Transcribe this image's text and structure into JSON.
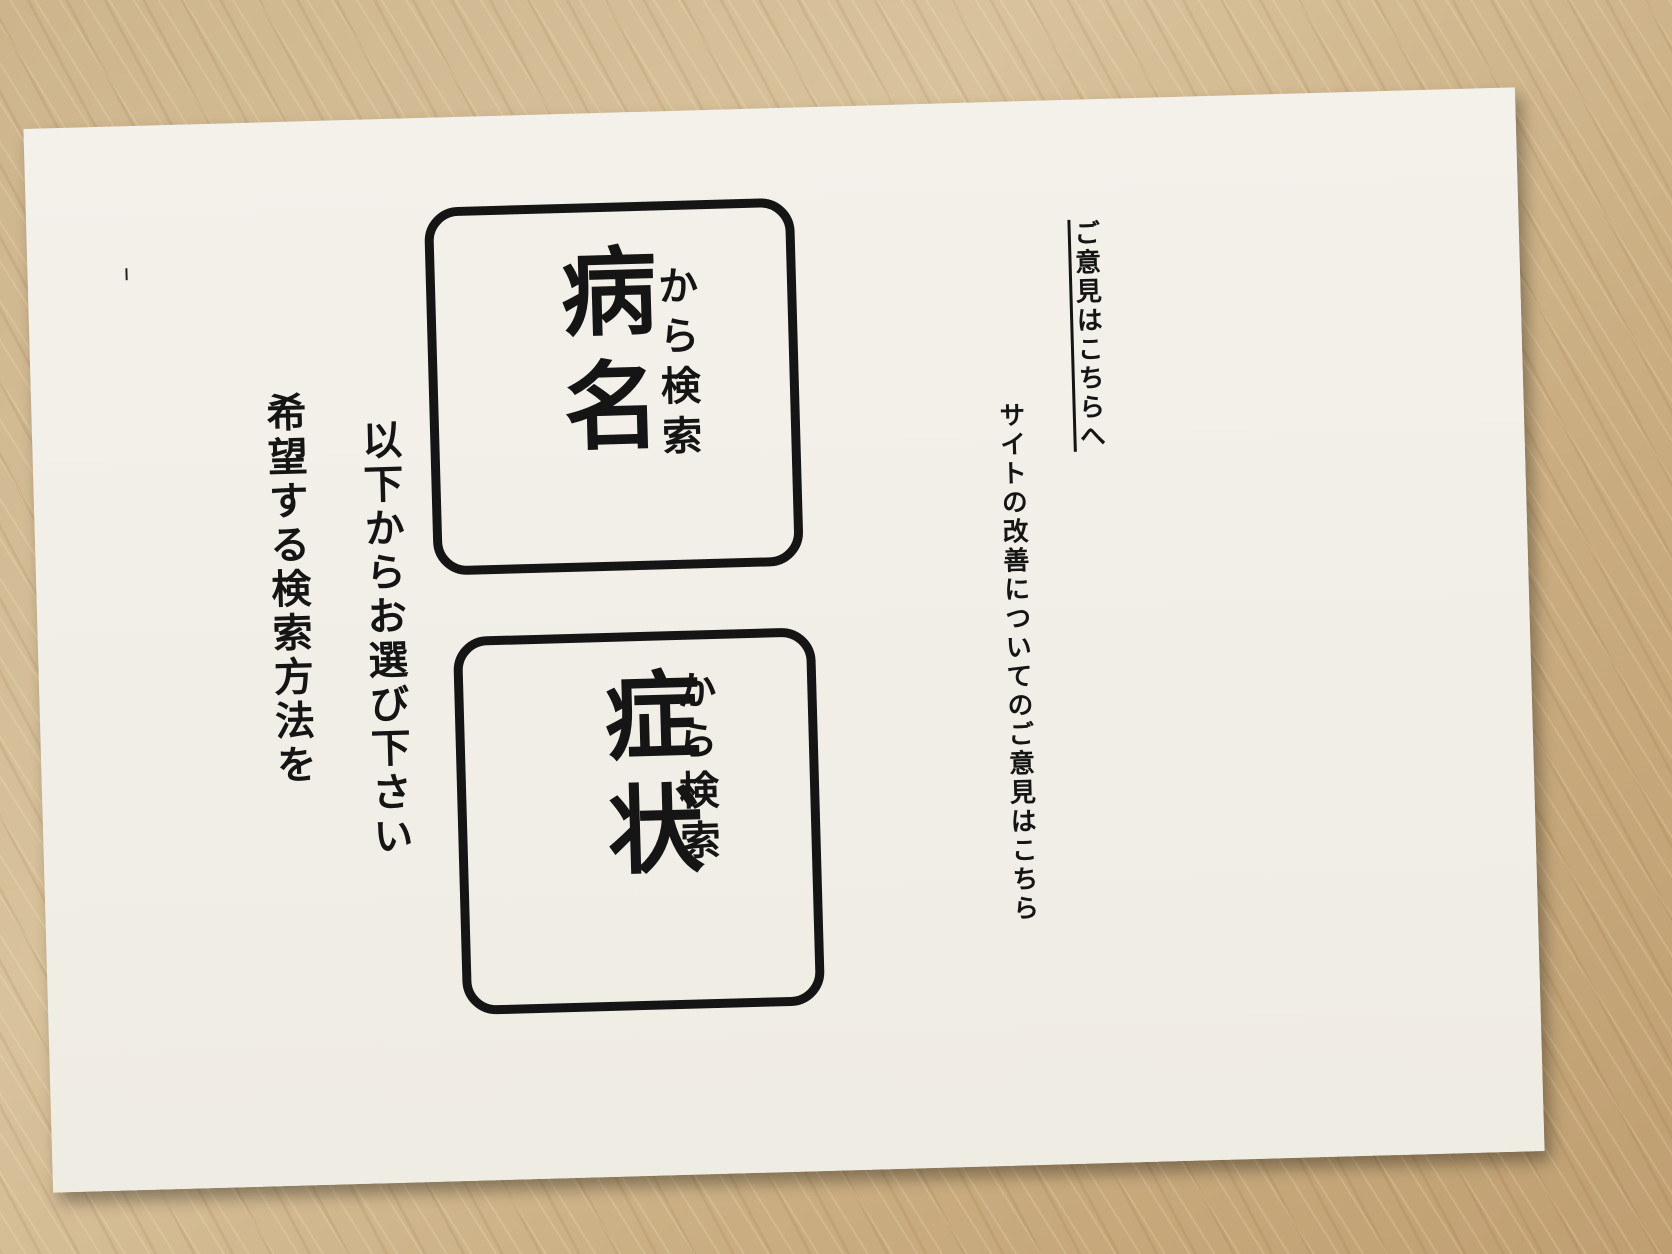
{
  "heading": {
    "line1": "希望する検索方法を",
    "line2": "以下からお選び下さい"
  },
  "cards": {
    "symptom": {
      "title": "症状",
      "subtitle": "から検索"
    },
    "disease": {
      "title": "病名",
      "subtitle": "から検索"
    }
  },
  "footer": {
    "line1": "サイトの改善についてのご意見はこちら",
    "line2": "ご意見はこちらへ"
  }
}
